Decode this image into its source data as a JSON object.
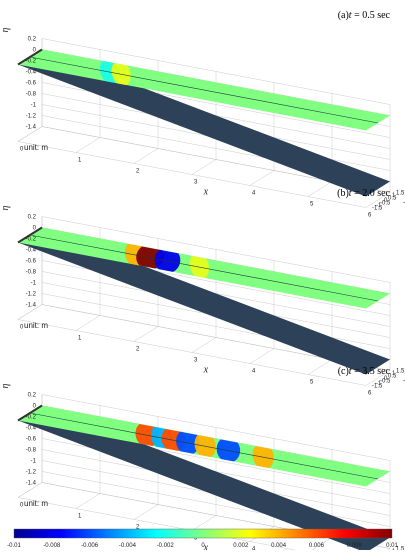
{
  "chart_data": {
    "type": "3d-surface",
    "panels": [
      {
        "id": "a",
        "label": "(a)",
        "t_var": "t",
        "t_text": " = 0.5 sec",
        "unit_label": "unit: m",
        "x_label": "x",
        "y_label": "y",
        "z_label": "η",
        "x_ticks": [
          "0",
          "1",
          "2",
          "3",
          "4",
          "5",
          "6"
        ],
        "y_ticks": [
          "1.5",
          "1",
          "0.5",
          "0",
          "-0.5",
          "-1",
          "-1.5"
        ],
        "z_ticks": [
          "0.2",
          "0",
          "-0.2",
          "-0.4",
          "-0.6",
          "-0.8",
          "-1",
          "-1.2",
          "-1.4"
        ],
        "xlim": [
          0,
          6
        ],
        "ylim": [
          -1.5,
          1.5
        ],
        "zlim": [
          -1.4,
          0.2
        ],
        "wave_crests": [
          {
            "x": 1.35,
            "amplitude": -0.002
          },
          {
            "x": 1.55,
            "amplitude": 0.002
          }
        ]
      },
      {
        "id": "b",
        "label": "(b)",
        "t_var": "t",
        "t_text": " = 2.0 sec",
        "unit_label": "unit: m",
        "x_label": "x",
        "y_label": "y",
        "z_label": "η",
        "x_ticks": [
          "0",
          "1",
          "2",
          "3",
          "4",
          "5",
          "6"
        ],
        "y_ticks": [
          "1.5",
          "1",
          "0.5",
          "0",
          "-0.5",
          "-1",
          "-1.5"
        ],
        "z_ticks": [
          "0.2",
          "0",
          "-0.2",
          "-0.4",
          "-0.6",
          "-0.8",
          "-1",
          "-1.2",
          "-1.4"
        ],
        "xlim": [
          0,
          6
        ],
        "ylim": [
          -1.5,
          1.5
        ],
        "zlim": [
          -1.4,
          0.2
        ],
        "wave_crests": [
          {
            "x": 1.8,
            "amplitude": 0.004
          },
          {
            "x": 2.05,
            "amplitude": 0.01
          },
          {
            "x": 2.35,
            "amplitude": -0.008
          },
          {
            "x": 2.9,
            "amplitude": 0.002
          }
        ]
      },
      {
        "id": "c",
        "label": "(c)",
        "t_var": "t",
        "t_text": " = 3.5 sec",
        "unit_label": "unit: m",
        "x_label": "x",
        "y_label": "y",
        "z_label": "η",
        "x_ticks": [
          "0",
          "1",
          "2",
          "3",
          "4",
          "5",
          "6"
        ],
        "y_ticks": [
          "1.5",
          "1",
          "0.5",
          "0",
          "-0.5",
          "-1",
          "-1.5"
        ],
        "z_ticks": [
          "0.2",
          "0",
          "-0.2",
          "-0.4",
          "-0.6",
          "-0.8",
          "-1",
          "-1.2",
          "-1.4"
        ],
        "xlim": [
          0,
          6
        ],
        "ylim": [
          -1.5,
          1.5
        ],
        "zlim": [
          -1.4,
          0.2
        ],
        "wave_crests": [
          {
            "x": 2.0,
            "amplitude": 0.006
          },
          {
            "x": 2.25,
            "amplitude": -0.004
          },
          {
            "x": 2.45,
            "amplitude": 0.006
          },
          {
            "x": 2.7,
            "amplitude": -0.006
          },
          {
            "x": 3.0,
            "amplitude": 0.004
          },
          {
            "x": 3.4,
            "amplitude": -0.006
          },
          {
            "x": 4.0,
            "amplitude": 0.004
          }
        ]
      }
    ],
    "colorbar": {
      "ticks": [
        "-0.01",
        "-0.008",
        "-0.006",
        "-0.004",
        "-0.002",
        "0",
        "0.002",
        "0.004",
        "0.006",
        "0.008",
        "0.01"
      ],
      "range": [
        -0.01,
        0.01
      ],
      "colormap": "jet"
    },
    "colors": {
      "seabed": "#2d4259",
      "surface_base": "#8fd36c",
      "box_line": "#bdbdbd"
    }
  }
}
